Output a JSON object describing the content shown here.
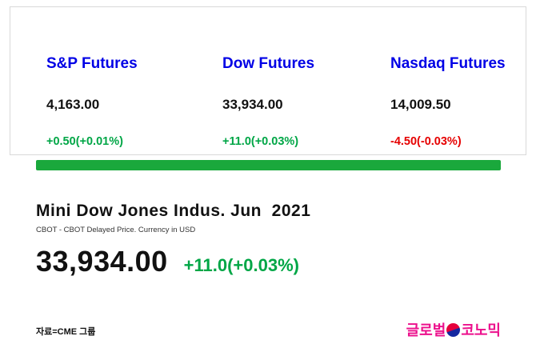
{
  "futures": {
    "items": [
      {
        "label": "S&P Futures",
        "value": "4,163.00",
        "change": "+0.50(+0.01%)",
        "direction": "up"
      },
      {
        "label": "Dow Futures",
        "value": "33,934.00",
        "change": "+11.0(+0.03%)",
        "direction": "up"
      },
      {
        "label": "Nasdaq Futures",
        "value": "14,009.50",
        "change": "-4.50(-0.03%)",
        "direction": "down"
      }
    ]
  },
  "detail": {
    "title": "Mini Dow Jones Indus. Jun  2021",
    "subtitle": "CBOT - CBOT Delayed Price. Currency in USD",
    "price": "33,934.00",
    "change": "+11.0(+0.03%)",
    "direction": "up"
  },
  "footer": {
    "source": "자료=CME 그룹",
    "logo_prefix": "글로벌",
    "logo_suffix": "코노믹",
    "logo_icon": "taegeuk-circle-icon"
  },
  "colors": {
    "label_blue": "#0000e6",
    "up_green": "#00a646",
    "down_red": "#e60000",
    "bar_green": "#1aa83c",
    "logo_pink": "#ec0f8c"
  }
}
